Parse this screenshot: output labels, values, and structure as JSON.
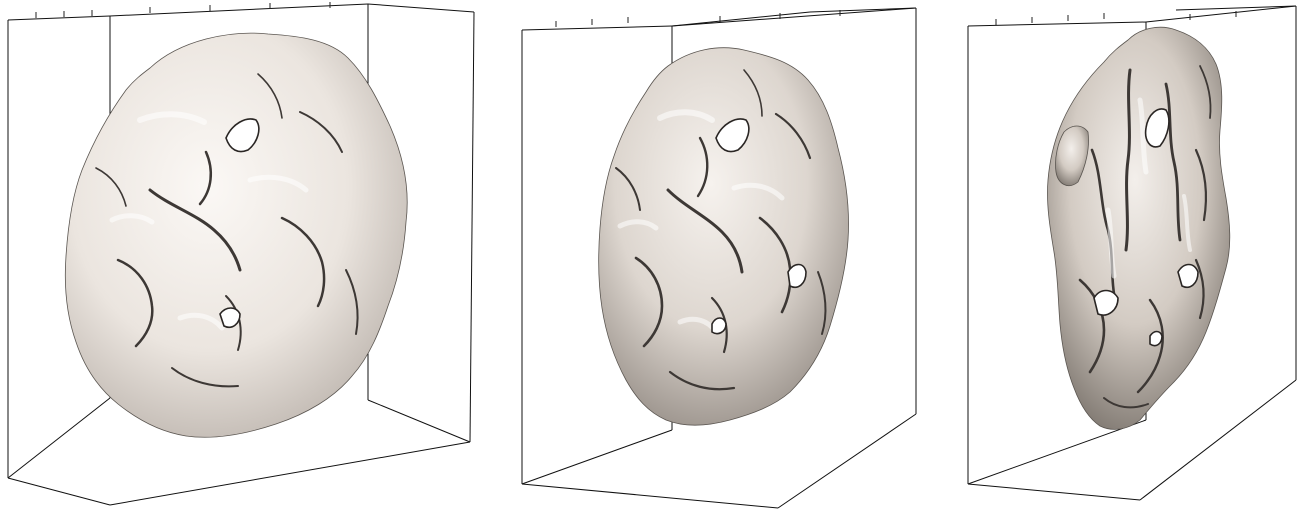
{
  "figure": {
    "panel_count": 3,
    "panels": [
      {
        "id": "panel-1",
        "object": "isosurface",
        "tone": "light",
        "surface_color": "#eee8e2",
        "shadow_color": "#8f8881"
      },
      {
        "id": "panel-2",
        "object": "isosurface",
        "tone": "medium",
        "surface_color": "#e4ddd6",
        "shadow_color": "#6f6862"
      },
      {
        "id": "panel-3",
        "object": "isosurface",
        "tone": "dark",
        "surface_color": "#d8d0c9",
        "shadow_color": "#4d4742"
      }
    ],
    "frame_color": "#111111",
    "background_color": "#ffffff"
  }
}
